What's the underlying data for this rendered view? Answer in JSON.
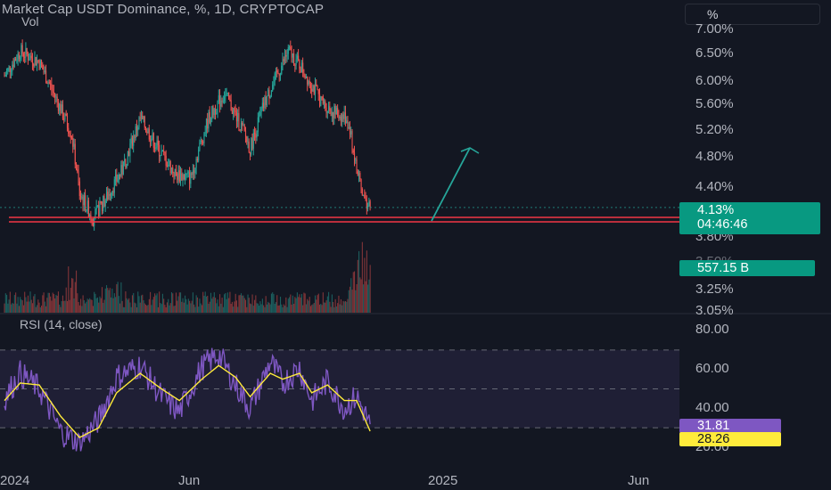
{
  "header": {
    "title": "Market Cap USDT Dominance, %, 1D, CRYPTOCAP",
    "volume_label": "Vol",
    "unit_button": "%"
  },
  "price_axis": [
    "7.00%",
    "6.50%",
    "6.00%",
    "5.60%",
    "5.20%",
    "4.80%",
    "4.40%",
    "3.80%",
    "3.50%",
    "3.25%",
    "3.05%"
  ],
  "rsi_axis": [
    "80.00",
    "60.00",
    "40.00",
    "20.00"
  ],
  "time_axis": [
    "2024",
    "Jun",
    "2025",
    "Jun"
  ],
  "labels": {
    "last_price": "4.13%",
    "countdown": "04:46:46",
    "volume": "557.15 B",
    "rsi_value": "31.81",
    "rsi_ma": "28.26"
  },
  "rsi_title": "RSI (14, close)",
  "colors": {
    "background": "#131722",
    "up": "#26a69a",
    "down": "#ef5350",
    "support_line": "#f23645",
    "arrow": "#26a69a",
    "rsi_line": "#7e57c2",
    "rsi_ma": "#ffeb3b",
    "rsi_band": "#7e57c2"
  },
  "chart_data": [
    {
      "type": "line",
      "name": "price",
      "x": [
        "2024-01-01",
        "2024-01-15",
        "2024-02-01",
        "2024-02-15",
        "2024-03-01",
        "2024-03-08",
        "2024-03-20",
        "2024-04-01",
        "2024-04-15",
        "2024-05-01",
        "2024-05-15",
        "2024-06-01",
        "2024-06-15",
        "2024-07-01",
        "2024-07-15",
        "2024-08-01",
        "2024-08-07",
        "2024-08-20",
        "2024-09-01",
        "2024-09-10",
        "2024-09-20",
        "2024-10-01",
        "2024-10-10",
        "2024-10-20",
        "2024-11-01",
        "2024-11-05",
        "2024-11-10",
        "2024-11-14",
        "2024-11-18",
        "2024-11-22"
      ],
      "values": [
        6.05,
        6.5,
        6.3,
        5.7,
        5.1,
        4.3,
        4.0,
        4.25,
        4.6,
        5.35,
        4.95,
        4.55,
        4.5,
        5.35,
        5.75,
        5.15,
        4.9,
        5.6,
        6.1,
        6.5,
        6.25,
        5.9,
        5.6,
        5.45,
        5.35,
        5.05,
        4.6,
        4.35,
        4.2,
        4.13
      ]
    },
    {
      "type": "bar",
      "name": "volume",
      "last_value": "557.15 B"
    },
    {
      "type": "line",
      "name": "RSI (14, close)",
      "x": [
        "2024-01-01",
        "2024-01-15",
        "2024-02-01",
        "2024-02-20",
        "2024-03-08",
        "2024-03-25",
        "2024-04-10",
        "2024-05-01",
        "2024-05-20",
        "2024-06-05",
        "2024-06-25",
        "2024-07-10",
        "2024-07-25",
        "2024-08-07",
        "2024-08-25",
        "2024-09-05",
        "2024-09-20",
        "2024-10-01",
        "2024-10-15",
        "2024-10-30",
        "2024-11-10",
        "2024-11-22"
      ],
      "values": [
        45,
        58,
        50,
        28,
        22,
        34,
        56,
        62,
        46,
        38,
        61,
        68,
        52,
        40,
        64,
        53,
        61,
        44,
        54,
        40,
        46,
        31.81
      ],
      "ma": [
        44,
        53,
        52,
        36,
        25,
        30,
        48,
        58,
        50,
        44,
        55,
        62,
        56,
        46,
        58,
        55,
        58,
        48,
        52,
        44,
        44,
        28.26
      ],
      "ylim": [
        15,
        85
      ],
      "levels": [
        70,
        50,
        30
      ]
    }
  ]
}
